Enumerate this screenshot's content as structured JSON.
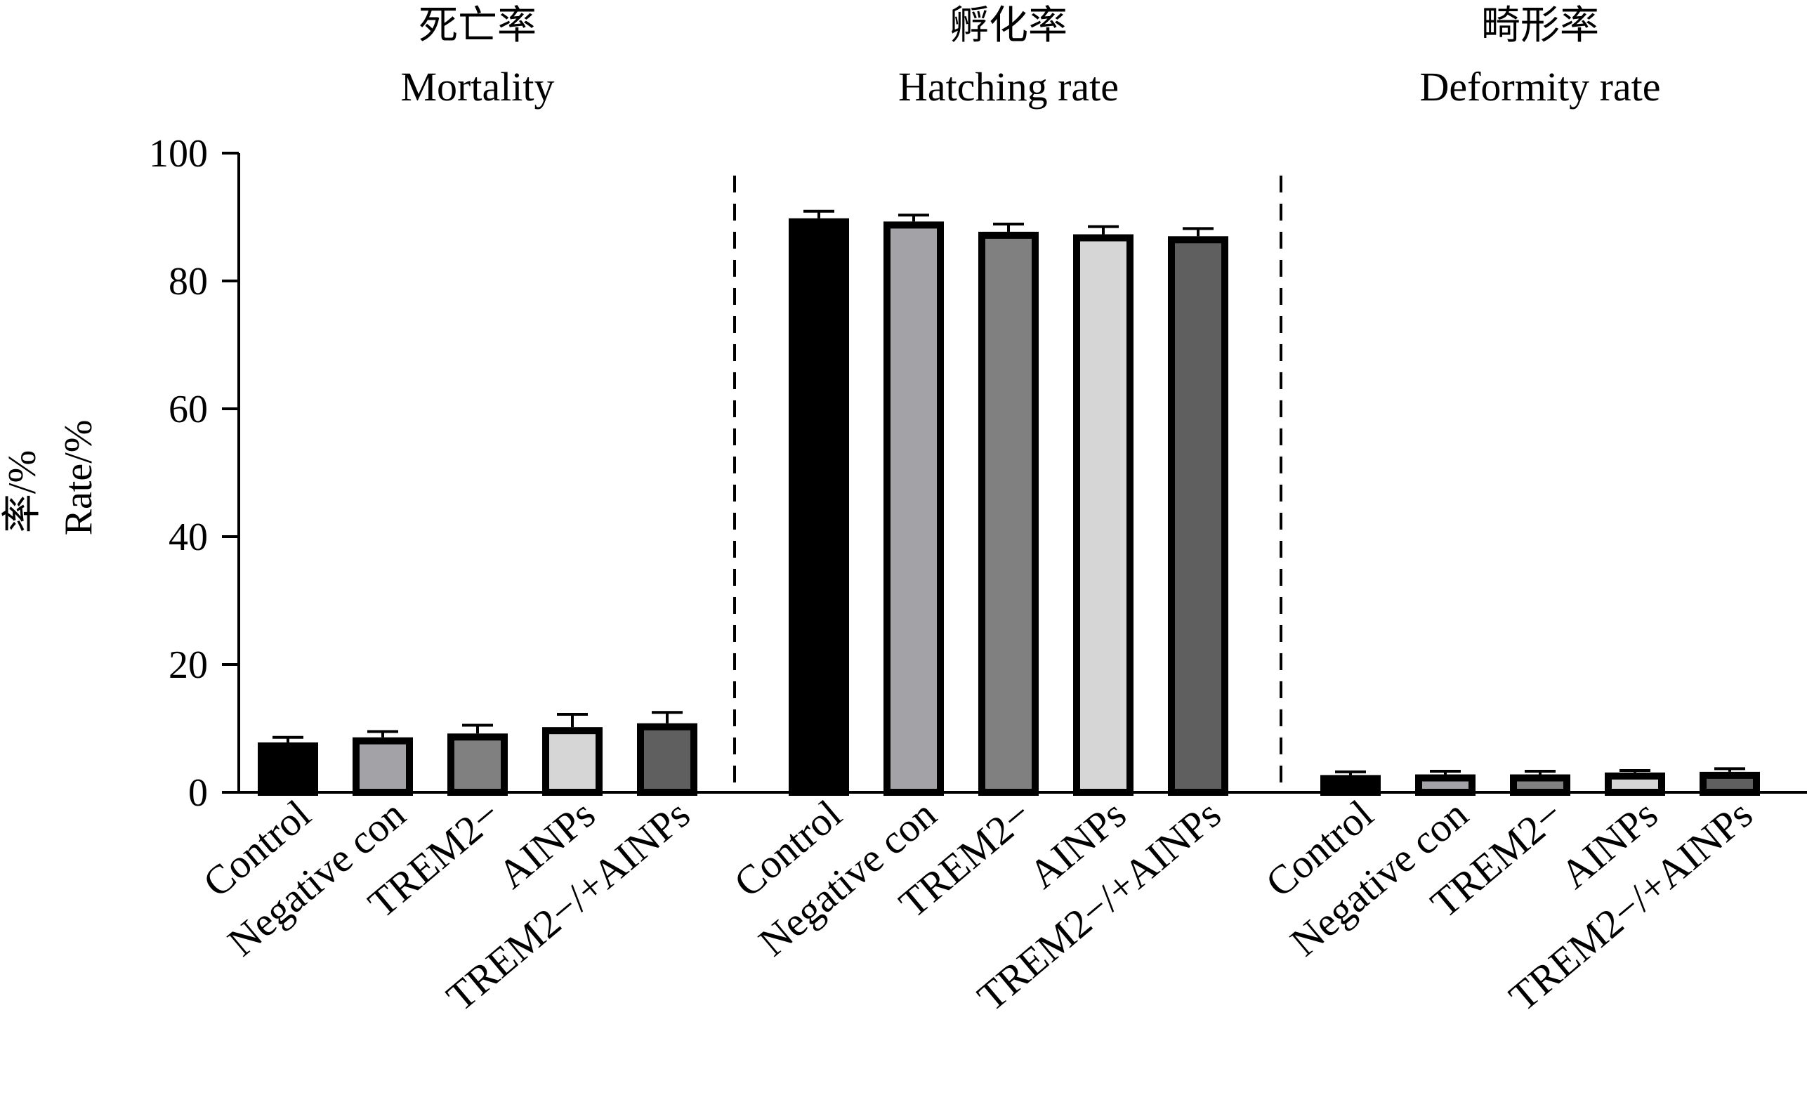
{
  "chart_data": {
    "type": "bar",
    "ylabel_zh": "率/%",
    "ylabel_en": "Rate/%",
    "ylim": [
      0,
      100
    ],
    "yticks": [
      0,
      20,
      40,
      60,
      80,
      100
    ],
    "categories": [
      "Control",
      "Negative con",
      "TREM2−",
      "AINPs",
      "TREM2−/+AINPs"
    ],
    "bar_colors": [
      "#000000",
      "#a3a3a7",
      "#808080",
      "#d6d6d6",
      "#5f5f5f"
    ],
    "panels": [
      {
        "title_zh": "死亡率",
        "title_en": "Mortality",
        "values": [
          7.8,
          8.6,
          9.2,
          10.2,
          10.8
        ],
        "errors": [
          0.8,
          0.9,
          1.3,
          2.0,
          1.7
        ]
      },
      {
        "title_zh": "孵化率",
        "title_en": "Hatching rate",
        "values": [
          89.8,
          89.3,
          87.7,
          87.3,
          87.0
        ],
        "errors": [
          1.1,
          1.0,
          1.2,
          1.2,
          1.2
        ]
      },
      {
        "title_zh": "畸形率",
        "title_en": "Deformity rate",
        "values": [
          2.7,
          2.8,
          2.8,
          3.1,
          3.2
        ],
        "errors": [
          0.5,
          0.5,
          0.5,
          0.3,
          0.5
        ]
      }
    ]
  }
}
